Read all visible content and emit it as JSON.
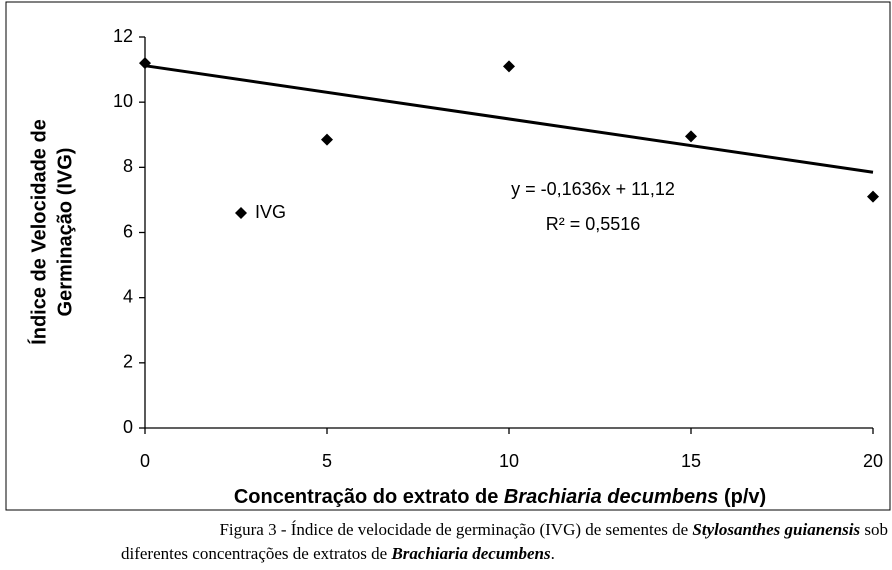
{
  "chart_data": {
    "type": "scatter",
    "x": [
      0,
      5,
      10,
      15,
      20
    ],
    "values": [
      11.2,
      8.85,
      11.1,
      8.95,
      7.1
    ],
    "series_name": "IVG",
    "color": "#000000",
    "xlim": [
      0,
      20
    ],
    "ylim": [
      0,
      12
    ],
    "xticks": [
      0,
      5,
      10,
      15,
      20
    ],
    "yticks": [
      0,
      2,
      4,
      6,
      8,
      10,
      12
    ],
    "grid": false,
    "trendline": {
      "x": [
        0,
        20
      ],
      "y": [
        11.12,
        7.85
      ]
    },
    "equation": "y = -0,1636x + 11,12",
    "r_squared": "R² = 0,5516",
    "ylabel": [
      "Índice de Velocidade de",
      "Germinação (IVG)"
    ],
    "xlabel": [
      "Concentração do extrato de ",
      "Brachiaria decumbens",
      " (p/v)"
    ],
    "caption": [
      [
        "Figura 3 - Índice de velocidade de germinação (IVG) de sementes de ",
        "Stylosanthes guianensis",
        " sob"
      ],
      [
        "diferentes concentrações de extratos de ",
        "Brachiaria decumbens",
        "."
      ]
    ]
  }
}
